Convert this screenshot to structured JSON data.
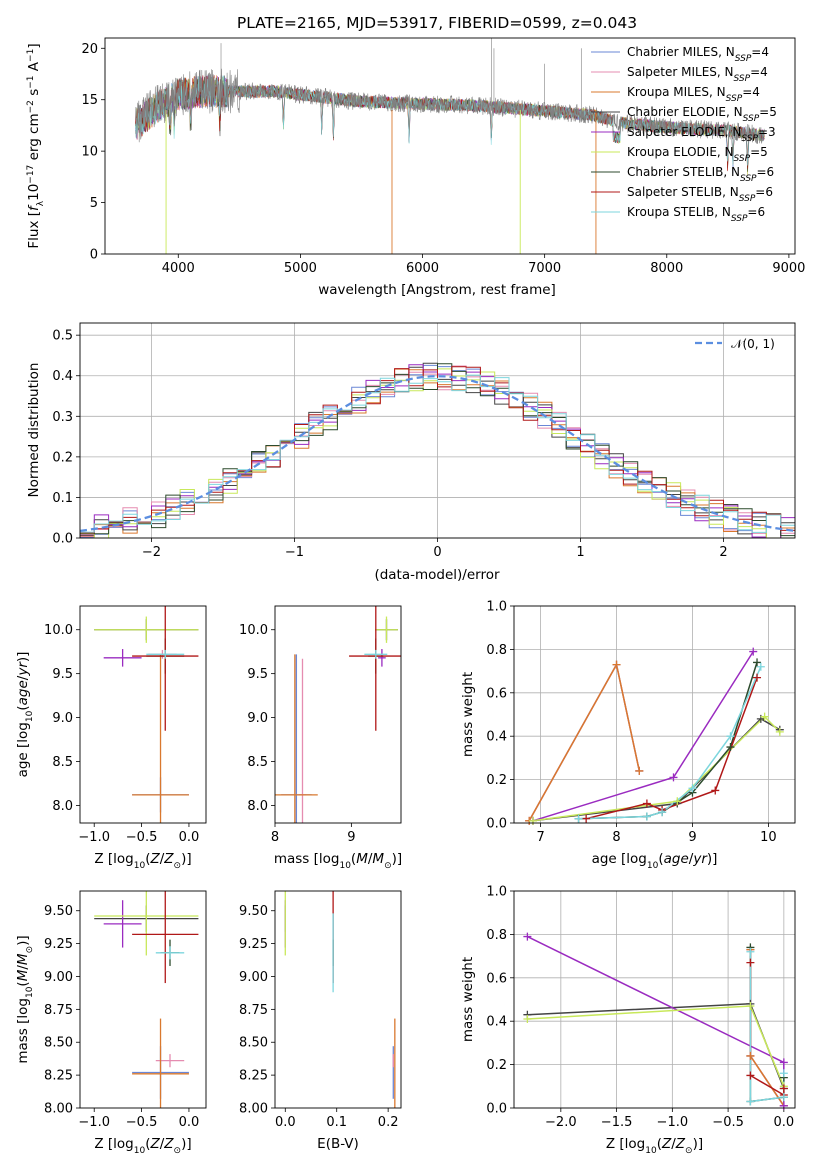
{
  "figure": {
    "title": "PLATE=2165, MJD=53917, FIBERID=0599, z=0.043"
  },
  "colors": {
    "Chabrier MILES": "#6a87d6",
    "Salpeter MILES": "#e58cb0",
    "Kroupa MILES": "#d9782e",
    "Chabrier ELODIE": "#444444",
    "Salpeter ELODIE": "#9a2bc0",
    "Kroupa ELODIE": "#c8e85a",
    "Chabrier STELIB": "#2c4a2c",
    "Salpeter STELIB": "#b01818",
    "Kroupa STELIB": "#7dd6de",
    "normal": "#5b8ee0"
  },
  "chart_data": [
    {
      "panel": "spectrum",
      "type": "line",
      "xlabel": "wavelength [Angstrom, rest frame]",
      "ylabel": "Flux [f_λ10^-17 erg cm^-2 s^-1 A^-1]",
      "xlim": [
        3400,
        9050
      ],
      "ylim": [
        0,
        21
      ],
      "xticks": [
        "4000",
        "5000",
        "6000",
        "7000",
        "8000",
        "9000"
      ],
      "yticks": [
        "0",
        "5",
        "10",
        "15",
        "20"
      ],
      "legend_position": "upper-right",
      "legend": [
        {
          "name": "Chabrier MILES",
          "n": "4"
        },
        {
          "name": "Salpeter MILES",
          "n": "4"
        },
        {
          "name": "Kroupa MILES",
          "n": "4"
        },
        {
          "name": "Chabrier ELODIE",
          "n": "5"
        },
        {
          "name": "Salpeter ELODIE",
          "n": "3"
        },
        {
          "name": "Kroupa ELODIE",
          "n": "5"
        },
        {
          "name": "Chabrier STELIB",
          "n": "6"
        },
        {
          "name": "Salpeter STELIB",
          "n": "6"
        },
        {
          "name": "Kroupa STELIB",
          "n": "6"
        }
      ],
      "continuum": {
        "x": [
          3650,
          3800,
          4000,
          4200,
          4500,
          4800,
          5000,
          5500,
          6000,
          6500,
          7000,
          7400,
          7600,
          8000,
          8500,
          8800
        ],
        "y": [
          12.5,
          14.0,
          15.5,
          15.8,
          15.8,
          15.8,
          15.5,
          14.8,
          14.6,
          14.4,
          13.9,
          13.5,
          12.8,
          12.3,
          12.0,
          11.5
        ]
      }
    },
    {
      "panel": "residual-histogram",
      "type": "line",
      "xlabel": "(data-model)/error",
      "ylabel": "Normed distribution",
      "xlim": [
        -2.5,
        2.5
      ],
      "ylim": [
        0,
        0.53
      ],
      "xticks": [
        "−2",
        "−1",
        "0",
        "1",
        "2"
      ],
      "yticks": [
        "0.0",
        "0.1",
        "0.2",
        "0.3",
        "0.4",
        "0.5"
      ],
      "grid": true,
      "legend_position": "upper-right",
      "legend": "𝒩(0, 1)"
    },
    {
      "panel": "age-vs-Z",
      "type": "scatter",
      "xlabel": "Z [log10(Z/Z⊙)]",
      "ylabel": "age [log10(age/yr)]",
      "xlim": [
        -1.15,
        0.18
      ],
      "ylim": [
        7.8,
        10.27
      ],
      "xticks": [
        "−1.0",
        "−0.5",
        "0.0"
      ],
      "yticks": [
        "8.0",
        "8.5",
        "9.0",
        "9.5",
        "10.0"
      ],
      "points": [
        {
          "m": "Chabrier MILES",
          "x": -0.3,
          "y": 8.12,
          "ex": 0.3,
          "ey": 0.2
        },
        {
          "m": "Salpeter MILES",
          "x": -0.28,
          "y": 9.72,
          "ex": 0.15,
          "ey": 0.05
        },
        {
          "m": "Kroupa MILES",
          "x": -0.3,
          "y": 8.12,
          "ex": 0.3,
          "ey": 1.6
        },
        {
          "m": "Chabrier ELODIE",
          "x": -0.45,
          "y": 10.0,
          "ex": 0.55,
          "ey": 0.12
        },
        {
          "m": "Salpeter ELODIE",
          "x": -0.7,
          "y": 9.68,
          "ex": 0.2,
          "ey": 0.1
        },
        {
          "m": "Kroupa ELODIE",
          "x": -0.45,
          "y": 10.0,
          "ex": 0.55,
          "ey": 0.15
        },
        {
          "m": "Chabrier STELIB",
          "x": -0.25,
          "y": 9.7,
          "ex": 0.2,
          "ey": 0.2
        },
        {
          "m": "Salpeter STELIB",
          "x": -0.25,
          "y": 9.7,
          "ex": 0.35,
          "ey": 0.85
        },
        {
          "m": "Kroupa STELIB",
          "x": -0.25,
          "y": 9.72,
          "ex": 0.2,
          "ey": 0.05
        }
      ]
    },
    {
      "panel": "age-vs-mass",
      "type": "scatter",
      "xlabel": "mass [log10(M/M⊙)]",
      "ylabel": "",
      "xlim": [
        8.0,
        9.65
      ],
      "ylim": [
        7.8,
        10.27
      ],
      "xticks": [
        "8",
        "9"
      ],
      "yticks": [
        "8.0",
        "8.5",
        "9.0",
        "9.5",
        "10.0"
      ],
      "points": [
        {
          "m": "Chabrier MILES",
          "x": 8.28,
          "y": 8.12,
          "ex": 0.2,
          "ey": 1.6
        },
        {
          "m": "Salpeter MILES",
          "x": 8.36,
          "y": 8.12,
          "ex": 0.05,
          "ey": 1.55
        },
        {
          "m": "Kroupa MILES",
          "x": 8.26,
          "y": 8.12,
          "ex": 0.3,
          "ey": 1.6
        },
        {
          "m": "Chabrier ELODIE",
          "x": 9.46,
          "y": 10.0,
          "ex": 0.15,
          "ey": 0.12
        },
        {
          "m": "Salpeter ELODIE",
          "x": 9.4,
          "y": 9.68,
          "ex": 0.05,
          "ey": 0.1
        },
        {
          "m": "Kroupa ELODIE",
          "x": 9.46,
          "y": 10.0,
          "ex": 0.15,
          "ey": 0.15
        },
        {
          "m": "Chabrier STELIB",
          "x": 9.32,
          "y": 9.7,
          "ex": 0.1,
          "ey": 0.2
        },
        {
          "m": "Salpeter STELIB",
          "x": 9.32,
          "y": 9.7,
          "ex": 0.35,
          "ey": 0.85
        },
        {
          "m": "Kroupa STELIB",
          "x": 9.32,
          "y": 9.72,
          "ex": 0.15,
          "ey": 0.05
        }
      ]
    },
    {
      "panel": "mass-weight-vs-age",
      "type": "line",
      "xlabel": "age [log10(age/yr)]",
      "ylabel": "mass weight",
      "xlim": [
        6.65,
        10.35
      ],
      "ylim": [
        0,
        1
      ],
      "xticks": [
        "7",
        "8",
        "9",
        "10"
      ],
      "yticks": [
        "0.0",
        "0.2",
        "0.4",
        "0.6",
        "0.8",
        "1.0"
      ],
      "grid": true,
      "series": [
        {
          "name": "Chabrier MILES",
          "x": [
            6.85,
            8.0,
            8.3
          ],
          "y": [
            0.01,
            0.73,
            0.24
          ]
        },
        {
          "name": "Salpeter MILES",
          "x": [
            6.85,
            8.0,
            8.3
          ],
          "y": [
            0.01,
            0.73,
            0.24
          ]
        },
        {
          "name": "Kroupa MILES",
          "x": [
            6.85,
            8.0,
            8.3
          ],
          "y": [
            0.01,
            0.73,
            0.24
          ]
        },
        {
          "name": "Chabrier ELODIE",
          "x": [
            6.9,
            8.8,
            9.9,
            10.15
          ],
          "y": [
            0.01,
            0.09,
            0.48,
            0.43
          ]
        },
        {
          "name": "Salpeter ELODIE",
          "x": [
            6.9,
            8.75,
            9.8
          ],
          "y": [
            0.01,
            0.21,
            0.79
          ]
        },
        {
          "name": "Kroupa ELODIE",
          "x": [
            6.9,
            8.8,
            9.95,
            10.15
          ],
          "y": [
            0.01,
            0.1,
            0.49,
            0.42
          ]
        },
        {
          "name": "Chabrier STELIB",
          "x": [
            7.5,
            8.4,
            8.6,
            9.0,
            9.5,
            9.85
          ],
          "y": [
            0.02,
            0.03,
            0.05,
            0.14,
            0.35,
            0.74
          ]
        },
        {
          "name": "Salpeter STELIB",
          "x": [
            7.6,
            8.4,
            8.6,
            9.3,
            9.85
          ],
          "y": [
            0.02,
            0.09,
            0.06,
            0.15,
            0.67
          ]
        },
        {
          "name": "Kroupa STELIB",
          "x": [
            7.5,
            8.4,
            8.6,
            9.0,
            9.5,
            9.9
          ],
          "y": [
            0.02,
            0.03,
            0.05,
            0.16,
            0.4,
            0.72
          ]
        }
      ]
    },
    {
      "panel": "mass-vs-Z",
      "type": "scatter",
      "xlabel": "Z [log10(Z/Z⊙)]",
      "ylabel": "mass [log10(M/M⊙)]",
      "xlim": [
        -1.15,
        0.18
      ],
      "ylim": [
        8.0,
        9.65
      ],
      "xticks": [
        "−1.0",
        "−0.5",
        "0.0"
      ],
      "yticks": [
        "8.00",
        "8.25",
        "8.50",
        "8.75",
        "9.00",
        "9.25",
        "9.50"
      ],
      "points": [
        {
          "m": "Chabrier MILES",
          "x": -0.3,
          "y": 8.27,
          "ex": 0.3,
          "ey": 0.2
        },
        {
          "m": "Salpeter MILES",
          "x": -0.2,
          "y": 8.36,
          "ex": 0.15,
          "ey": 0.05
        },
        {
          "m": "Kroupa MILES",
          "x": -0.3,
          "y": 8.26,
          "ex": 0.3,
          "ey": 0.42
        },
        {
          "m": "Chabrier ELODIE",
          "x": -0.45,
          "y": 9.44,
          "ex": 0.55,
          "ey": 0.1
        },
        {
          "m": "Salpeter ELODIE",
          "x": -0.7,
          "y": 9.4,
          "ex": 0.2,
          "ey": 0.18
        },
        {
          "m": "Kroupa ELODIE",
          "x": -0.45,
          "y": 9.46,
          "ex": 0.55,
          "ey": 0.3
        },
        {
          "m": "Chabrier STELIB",
          "x": -0.2,
          "y": 9.18,
          "ex": 0.1,
          "ey": 0.1
        },
        {
          "m": "Salpeter STELIB",
          "x": -0.25,
          "y": 9.32,
          "ex": 0.35,
          "ey": 0.37
        },
        {
          "m": "Kroupa STELIB",
          "x": -0.2,
          "y": 9.18,
          "ex": 0.15,
          "ey": 0.05
        }
      ]
    },
    {
      "panel": "mass-vs-EBV",
      "type": "scatter",
      "xlabel": "E(B-V)",
      "ylabel": "",
      "xlim": [
        -0.02,
        0.225
      ],
      "ylim": [
        8.0,
        9.65
      ],
      "xticks": [
        "0.0",
        "0.1",
        "0.2"
      ],
      "yticks": [
        "8.00",
        "8.25",
        "8.50",
        "8.75",
        "9.00",
        "9.25",
        "9.50"
      ],
      "points": [
        {
          "m": "Chabrier MILES",
          "x": 0.21,
          "y": 8.27,
          "ex": 0,
          "ey": 0.2
        },
        {
          "m": "Salpeter MILES",
          "x": 0.21,
          "y": 8.36,
          "ex": 0,
          "ey": 0.05
        },
        {
          "m": "Kroupa MILES",
          "x": 0.213,
          "y": 8.26,
          "ex": 0,
          "ey": 0.42
        },
        {
          "m": "Chabrier ELODIE",
          "x": 0.0,
          "y": 9.44,
          "ex": 0,
          "ey": 0.1
        },
        {
          "m": "Salpeter ELODIE",
          "x": 0.0,
          "y": 9.4,
          "ex": 0,
          "ey": 0.18
        },
        {
          "m": "Kroupa ELODIE",
          "x": 0.0,
          "y": 9.46,
          "ex": 0,
          "ey": 0.3
        },
        {
          "m": "Chabrier STELIB",
          "x": 0.093,
          "y": 9.18,
          "ex": 0,
          "ey": 0.1
        },
        {
          "m": "Salpeter STELIB",
          "x": 0.093,
          "y": 9.32,
          "ex": 0,
          "ey": 0.37
        },
        {
          "m": "Kroupa STELIB",
          "x": 0.093,
          "y": 9.18,
          "ex": 0,
          "ey": 0.3
        }
      ]
    },
    {
      "panel": "mass-weight-vs-Z",
      "type": "line",
      "xlabel": "Z [log10(Z/Z⊙)]",
      "ylabel": "mass weight",
      "xlim": [
        -2.42,
        0.1
      ],
      "ylim": [
        0,
        1
      ],
      "xticks": [
        "−2.0",
        "−1.5",
        "−1.0",
        "−0.5",
        "0.0"
      ],
      "yticks": [
        "0.0",
        "0.2",
        "0.4",
        "0.6",
        "0.8",
        "1.0"
      ],
      "grid": true,
      "series": [
        {
          "name": "Chabrier MILES",
          "x": [
            -0.3,
            -0.3,
            0.0
          ],
          "y": [
            0.73,
            0.24,
            0.01
          ]
        },
        {
          "name": "Salpeter MILES",
          "x": [
            -0.3,
            -0.3,
            0.0
          ],
          "y": [
            0.73,
            0.24,
            0.01
          ]
        },
        {
          "name": "Kroupa MILES",
          "x": [
            -0.3,
            -0.3,
            0.0
          ],
          "y": [
            0.73,
            0.24,
            0.01
          ]
        },
        {
          "name": "Chabrier ELODIE",
          "x": [
            -2.3,
            -0.3,
            0.0
          ],
          "y": [
            0.43,
            0.48,
            0.09
          ]
        },
        {
          "name": "Salpeter ELODIE",
          "x": [
            -2.3,
            0.0,
            0.0
          ],
          "y": [
            0.79,
            0.21,
            0.01
          ]
        },
        {
          "name": "Kroupa ELODIE",
          "x": [
            -2.3,
            -0.3,
            0.0
          ],
          "y": [
            0.41,
            0.47,
            0.1
          ]
        },
        {
          "name": "Chabrier STELIB",
          "x": [
            -0.3,
            -0.3,
            0.0,
            0.0
          ],
          "y": [
            0.74,
            0.03,
            0.05,
            0.14
          ]
        },
        {
          "name": "Salpeter STELIB",
          "x": [
            -0.3,
            -0.3,
            0.0,
            0.0
          ],
          "y": [
            0.67,
            0.15,
            0.06,
            0.09
          ]
        },
        {
          "name": "Kroupa STELIB",
          "x": [
            -0.3,
            -0.3,
            0.0,
            0.0
          ],
          "y": [
            0.72,
            0.03,
            0.05,
            0.16
          ]
        }
      ]
    }
  ]
}
